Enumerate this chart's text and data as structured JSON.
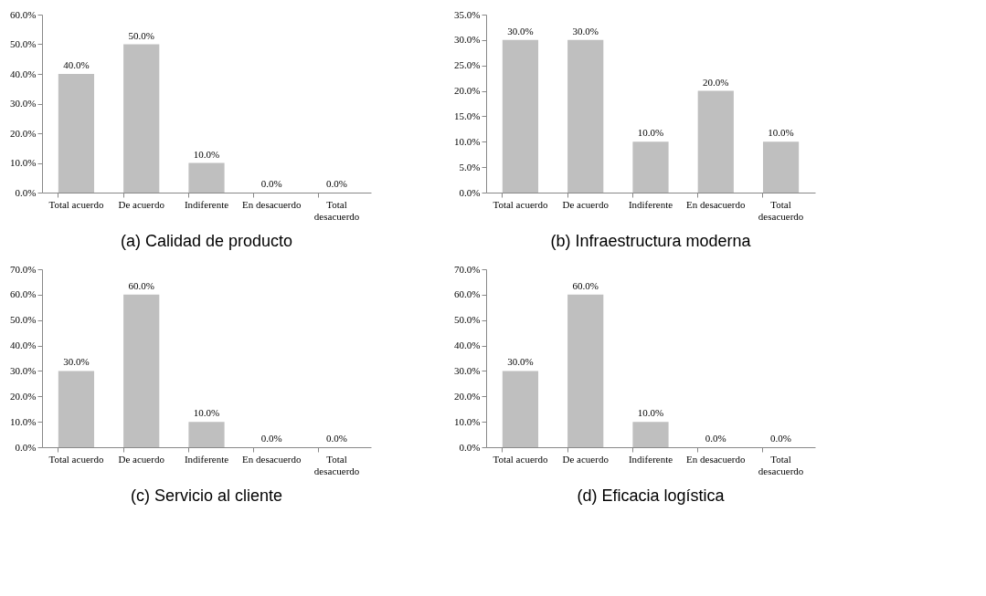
{
  "chart_data": [
    {
      "type": "bar",
      "title": "(a)  Calidad de producto",
      "categories": [
        "Total acuerdo",
        "De acuerdo",
        "Indiferente",
        "En desacuerdo",
        "Total desacuerdo"
      ],
      "values": [
        40,
        50,
        10,
        0,
        0
      ],
      "value_labels": [
        "40.0%",
        "50.0%",
        "10.0%",
        "0.0%",
        "0.0%"
      ],
      "color": "#bfbfbf",
      "ylim": [
        0,
        60
      ],
      "yticks": [
        {
          "value": 0,
          "label": "0.0%"
        },
        {
          "value": 10,
          "label": "10.0%"
        },
        {
          "value": 20,
          "label": "20.0%"
        },
        {
          "value": 30,
          "label": "30.0%"
        },
        {
          "value": 40,
          "label": "40.0%"
        },
        {
          "value": 50,
          "label": "50.0%"
        },
        {
          "value": 60,
          "label": "60.0%"
        }
      ],
      "grid": false
    },
    {
      "type": "bar",
      "title": "(b)  Infraestructura moderna",
      "categories": [
        "Total acuerdo",
        "De acuerdo",
        "Indiferente",
        "En desacuerdo",
        "Total desacuerdo"
      ],
      "values": [
        30,
        30,
        10,
        20,
        10
      ],
      "value_labels": [
        "30.0%",
        "30.0%",
        "10.0%",
        "20.0%",
        "10.0%"
      ],
      "color": "#bfbfbf",
      "ylim": [
        0,
        35
      ],
      "yticks": [
        {
          "value": 0,
          "label": "0.0%"
        },
        {
          "value": 5,
          "label": "5.0%"
        },
        {
          "value": 10,
          "label": "10.0%"
        },
        {
          "value": 15,
          "label": "15.0%"
        },
        {
          "value": 20,
          "label": "20.0%"
        },
        {
          "value": 25,
          "label": "25.0%"
        },
        {
          "value": 30,
          "label": "30.0%"
        },
        {
          "value": 35,
          "label": "35.0%"
        }
      ],
      "grid": false
    },
    {
      "type": "bar",
      "title": "(c)  Servicio al cliente",
      "categories": [
        "Total acuerdo",
        "De acuerdo",
        "Indiferente",
        "En desacuerdo",
        "Total desacuerdo"
      ],
      "values": [
        30,
        60,
        10,
        0,
        0
      ],
      "value_labels": [
        "30.0%",
        "60.0%",
        "10.0%",
        "0.0%",
        "0.0%"
      ],
      "color": "#bfbfbf",
      "ylim": [
        0,
        70
      ],
      "yticks": [
        {
          "value": 0,
          "label": "0.0%"
        },
        {
          "value": 10,
          "label": "10.0%"
        },
        {
          "value": 20,
          "label": "20.0%"
        },
        {
          "value": 30,
          "label": "30.0%"
        },
        {
          "value": 40,
          "label": "40.0%"
        },
        {
          "value": 50,
          "label": "50.0%"
        },
        {
          "value": 60,
          "label": "60.0%"
        },
        {
          "value": 70,
          "label": "70.0%"
        }
      ],
      "grid": false
    },
    {
      "type": "bar",
      "title": "(d)  Eficacia logística",
      "categories": [
        "Total acuerdo",
        "De acuerdo",
        "Indiferente",
        "En desacuerdo",
        "Total desacuerdo"
      ],
      "values": [
        30,
        60,
        10,
        0,
        0
      ],
      "value_labels": [
        "30.0%",
        "60.0%",
        "10.0%",
        "0.0%",
        "0.0%"
      ],
      "color": "#bfbfbf",
      "ylim": [
        0,
        70
      ],
      "yticks": [
        {
          "value": 0,
          "label": "0.0%"
        },
        {
          "value": 10,
          "label": "10.0%"
        },
        {
          "value": 20,
          "label": "20.0%"
        },
        {
          "value": 30,
          "label": "30.0%"
        },
        {
          "value": 40,
          "label": "40.0%"
        },
        {
          "value": 50,
          "label": "50.0%"
        },
        {
          "value": 60,
          "label": "60.0%"
        },
        {
          "value": 70,
          "label": "70.0%"
        }
      ],
      "grid": false
    }
  ]
}
